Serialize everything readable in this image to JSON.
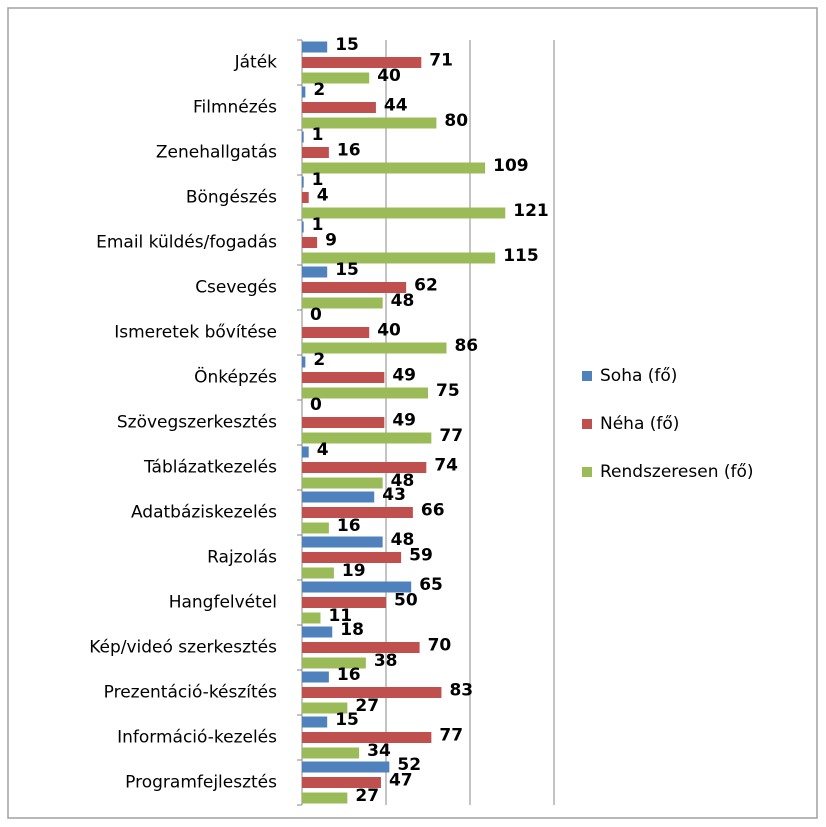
{
  "chart_data": {
    "type": "bar",
    "orientation": "horizontal",
    "categories": [
      "Játék",
      "Filmnézés",
      "Zenehallgatás",
      "Böngészés",
      "Email küldés/fogadás",
      "Csevegés",
      "Ismeretek bővítése",
      "Önképzés",
      "Szövegszerkesztés",
      "Táblázatkezelés",
      "Adatbáziskezelés",
      "Rajzolás",
      "Hangfelvétel",
      "Kép/videó szerkesztés",
      "Prezentáció-készítés",
      "Információ-kezelés",
      "Programfejlesztés"
    ],
    "series": [
      {
        "name": "Soha (fő)",
        "color": "#4f81bd",
        "values": [
          15,
          2,
          1,
          1,
          1,
          15,
          0,
          2,
          0,
          4,
          43,
          48,
          65,
          18,
          16,
          15,
          52
        ]
      },
      {
        "name": "Néha (fő)",
        "color": "#c0504d",
        "values": [
          71,
          44,
          16,
          4,
          9,
          62,
          40,
          49,
          49,
          74,
          66,
          59,
          50,
          70,
          83,
          77,
          47
        ]
      },
      {
        "name": "Rendszeresen (fő)",
        "color": "#9bbb59",
        "values": [
          40,
          80,
          109,
          121,
          115,
          48,
          86,
          75,
          77,
          48,
          16,
          19,
          11,
          38,
          27,
          34,
          27
        ]
      }
    ],
    "xlim": [
      0,
      150
    ],
    "xticks": [
      0,
      50,
      100,
      150
    ],
    "grid": true,
    "legend": "right"
  }
}
